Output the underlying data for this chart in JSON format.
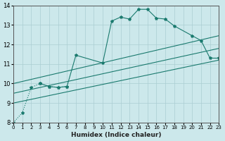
{
  "xlabel": "Humidex (Indice chaleur)",
  "xlim": [
    0,
    23
  ],
  "ylim": [
    8,
    14
  ],
  "xticks": [
    0,
    1,
    2,
    3,
    4,
    5,
    6,
    7,
    8,
    9,
    10,
    11,
    12,
    13,
    14,
    15,
    16,
    17,
    18,
    19,
    20,
    21,
    22,
    23
  ],
  "yticks": [
    8,
    9,
    10,
    11,
    12,
    13,
    14
  ],
  "bg_color": "#cce8eb",
  "grid_color": "#aacdd2",
  "line_color": "#1a7a6e",
  "series": [
    {
      "x": [
        0,
        1,
        2,
        3,
        4,
        5,
        6
      ],
      "y": [
        8.0,
        8.5,
        9.8,
        10.0,
        9.85,
        9.8,
        9.85
      ],
      "style": "dotted_marker"
    },
    {
      "x": [
        3,
        4,
        5,
        6,
        7,
        10,
        11,
        12,
        13,
        14,
        15,
        16,
        17,
        18,
        20,
        21,
        22,
        23
      ],
      "y": [
        10.0,
        9.85,
        9.8,
        9.85,
        11.45,
        11.05,
        13.2,
        13.4,
        13.3,
        13.8,
        13.8,
        13.35,
        13.3,
        12.95,
        12.45,
        12.2,
        11.3,
        11.3
      ],
      "style": "solid_marker"
    },
    {
      "x": [
        0,
        23
      ],
      "y": [
        9.0,
        11.2
      ],
      "style": "linear"
    },
    {
      "x": [
        0,
        23
      ],
      "y": [
        9.5,
        11.8
      ],
      "style": "linear"
    },
    {
      "x": [
        0,
        23
      ],
      "y": [
        10.0,
        12.45
      ],
      "style": "linear"
    }
  ]
}
